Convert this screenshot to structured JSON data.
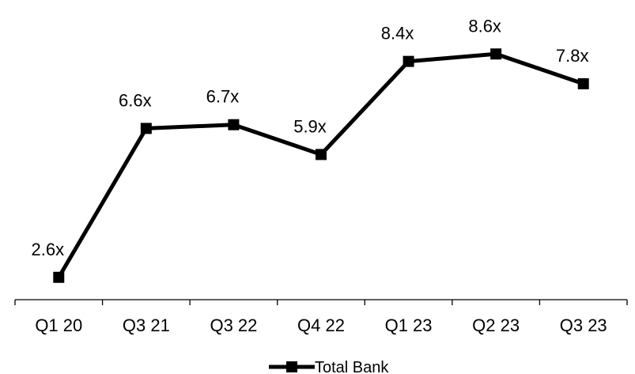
{
  "chart_data": {
    "type": "line",
    "categories": [
      "Q1 20",
      "Q3 21",
      "Q3 22",
      "Q4 22",
      "Q1 23",
      "Q2 23",
      "Q3 23"
    ],
    "series": [
      {
        "name": "Total Bank",
        "values": [
          2.6,
          6.6,
          6.7,
          5.9,
          8.4,
          8.6,
          7.8
        ],
        "labels": [
          "2.6x",
          "6.6x",
          "6.7x",
          "5.9x",
          "8.4x",
          "8.6x",
          "7.8x"
        ],
        "color": "#000000",
        "marker": "square"
      }
    ],
    "ylim": [
      2.0,
      9.2
    ],
    "grid": false,
    "legend": "bottom-center",
    "title": "",
    "xlabel": "",
    "ylabel": ""
  }
}
